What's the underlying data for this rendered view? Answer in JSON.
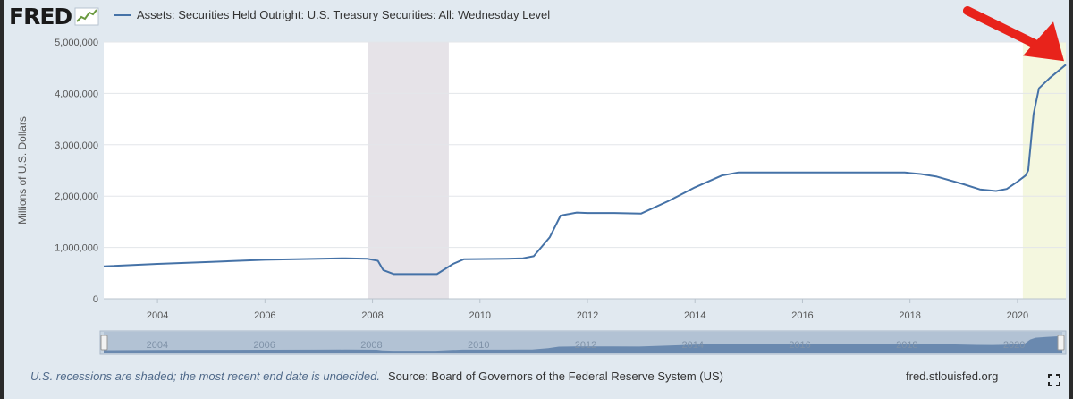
{
  "header": {
    "logo_text": "FRED",
    "logo_icon": "fred-chart-logo-icon"
  },
  "chart_data": {
    "type": "line",
    "series": [
      {
        "name": "Assets: Securities Held Outright: U.S. Treasury Securities: All: Wednesday Level",
        "color": "#4572a7",
        "x": [
          2003.0,
          2004.0,
          2005.0,
          2006.0,
          2007.0,
          2007.5,
          2007.9,
          2008.1,
          2008.2,
          2008.4,
          2008.9,
          2009.2,
          2009.5,
          2009.7,
          2010.5,
          2010.8,
          2011.0,
          2011.3,
          2011.5,
          2011.8,
          2012.0,
          2012.5,
          2013.0,
          2013.5,
          2014.0,
          2014.5,
          2014.8,
          2015.0,
          2015.5,
          2016.0,
          2017.0,
          2017.5,
          2017.9,
          2018.2,
          2018.5,
          2019.0,
          2019.3,
          2019.6,
          2019.8,
          2020.0,
          2020.15,
          2020.2,
          2020.3,
          2020.4,
          2020.6,
          2020.9
        ],
        "y": [
          630000,
          680000,
          720000,
          760000,
          780000,
          790000,
          780000,
          740000,
          560000,
          480000,
          480000,
          480000,
          680000,
          770000,
          780000,
          790000,
          830000,
          1200000,
          1620000,
          1680000,
          1670000,
          1670000,
          1660000,
          1900000,
          2170000,
          2400000,
          2460000,
          2460000,
          2460000,
          2460000,
          2460000,
          2460000,
          2460000,
          2430000,
          2380000,
          2230000,
          2130000,
          2100000,
          2140000,
          2280000,
          2400000,
          2500000,
          3600000,
          4100000,
          4300000,
          4560000
        ]
      }
    ],
    "xlim": [
      2003.0,
      2020.9
    ],
    "ylim": [
      0,
      5000000
    ],
    "ylabel": "Millions of U.S. Dollars",
    "x_ticks": [
      2004,
      2006,
      2008,
      2010,
      2012,
      2014,
      2016,
      2018,
      2020
    ],
    "x_tick_labels": [
      "2004",
      "2006",
      "2008",
      "2010",
      "2012",
      "2014",
      "2016",
      "2018",
      "2020"
    ],
    "y_ticks": [
      0,
      1000000,
      2000000,
      3000000,
      4000000,
      5000000
    ],
    "y_tick_labels": [
      "0",
      "1,000,000",
      "2,000,000",
      "3,000,000",
      "4,000,000",
      "5,000,000"
    ],
    "recession_shading": [
      {
        "start": 2007.92,
        "end": 2009.42,
        "color": "#e6e3e8"
      }
    ],
    "highlight_shading": [
      {
        "start": 2020.1,
        "end": 2020.9,
        "color": "#f4f7df"
      }
    ],
    "annotation": {
      "type": "arrow",
      "color": "#e8231b"
    },
    "navigator": {
      "tick_labels": [
        "2004",
        "2006",
        "2008",
        "2010",
        "2012",
        "2014",
        "2016",
        "2018",
        "2020"
      ]
    },
    "grid": true
  },
  "footer": {
    "note": "U.S. recessions are shaded; the most recent end date is undecided.",
    "source": "Source: Board of Governors of the Federal Reserve System (US)",
    "site": "fred.stlouisfed.org",
    "expand_icon": "fullscreen-icon"
  }
}
